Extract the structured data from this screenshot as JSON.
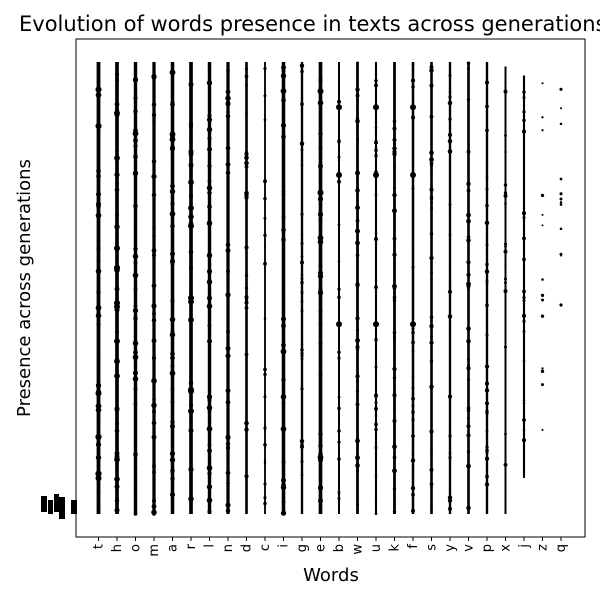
{
  "chart_data": {
    "type": "scatter",
    "title": "Evolution of words presence in texts across generations",
    "xlabel": "Words",
    "ylabel": "Presence across generations",
    "categories": [
      "t",
      "h",
      "o",
      "m",
      "a",
      "r",
      "l",
      "n",
      "d",
      "c",
      "i",
      "g",
      "e",
      "b",
      "w",
      "u",
      "k",
      "f",
      "s",
      "y",
      "v",
      "p",
      "x",
      "j",
      "z",
      "q"
    ],
    "y_ticks_shown": false,
    "ylim": [
      0,
      1
    ],
    "grid": false,
    "legend": "none",
    "marker_color": "#000000",
    "density": [
      1.0,
      0.95,
      0.85,
      0.8,
      0.9,
      0.95,
      0.85,
      0.8,
      0.55,
      0.25,
      0.9,
      0.45,
      0.95,
      0.3,
      0.6,
      0.35,
      0.6,
      0.5,
      0.55,
      0.45,
      0.55,
      0.45,
      0.3,
      0.35,
      0.12,
      0.07
    ],
    "span_top": [
      1.0,
      1.0,
      1.0,
      1.0,
      1.0,
      1.0,
      1.0,
      1.0,
      1.0,
      1.0,
      1.0,
      1.0,
      1.0,
      1.0,
      1.0,
      1.0,
      1.0,
      1.0,
      1.0,
      1.0,
      1.0,
      1.0,
      0.99,
      0.97,
      0.97,
      0.97
    ],
    "span_bottom": [
      0.0,
      0.0,
      0.0,
      0.0,
      0.0,
      0.0,
      0.0,
      0.0,
      0.0,
      0.0,
      0.0,
      0.0,
      0.0,
      0.0,
      0.0,
      0.0,
      0.0,
      0.0,
      0.0,
      0.0,
      0.0,
      0.0,
      0.0,
      0.08,
      0.17,
      0.4
    ]
  }
}
